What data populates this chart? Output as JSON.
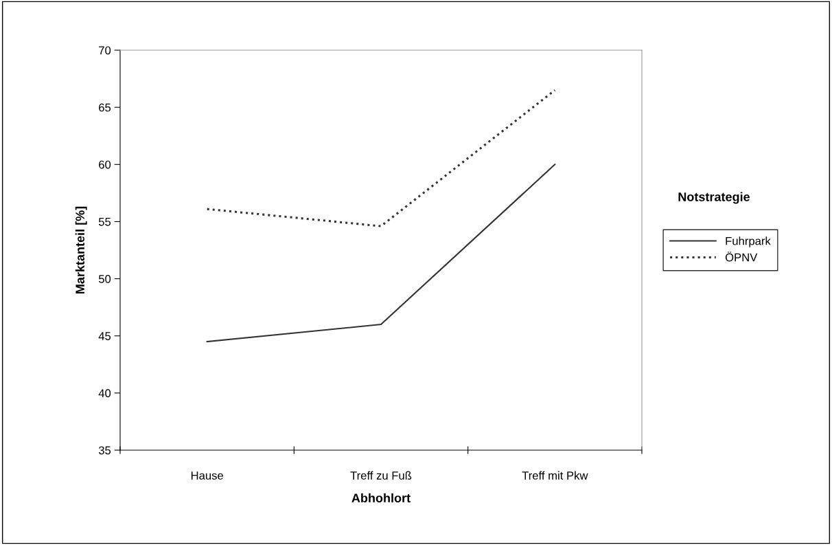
{
  "chart_data": {
    "type": "line",
    "xlabel": "Abhohlort",
    "ylabel": "Marktanteil [%]",
    "legend_title": "Notstrategie",
    "categories": [
      "Hause",
      "Treff zu Fuß",
      "Treff mit Pkw"
    ],
    "series": [
      {
        "name": "Fuhrpark",
        "color": "#333333",
        "values": [
          44.5,
          46.0,
          60.0
        ],
        "line_style": "solid"
      },
      {
        "name": "ÖPNV",
        "color": "#333333",
        "values": [
          56.1,
          54.6,
          66.5
        ],
        "line_style": "dotted"
      }
    ],
    "ylim": [
      35,
      70
    ],
    "yticks": [
      35,
      40,
      45,
      50,
      55,
      60,
      65,
      70
    ],
    "grid": false,
    "legend": "right",
    "marker": "none"
  }
}
